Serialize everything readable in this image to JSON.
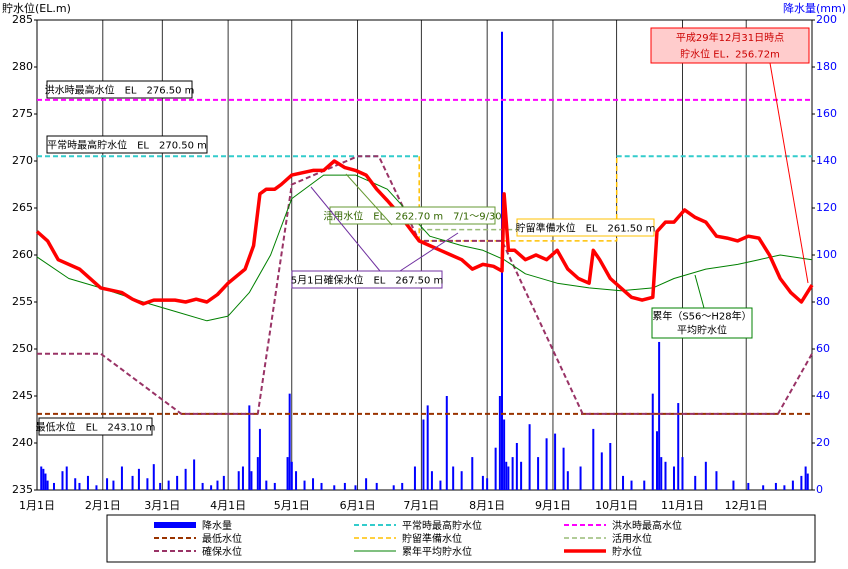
{
  "chart_data": {
    "type": "line",
    "y_label": "貯水位(EL.m)",
    "y2_label": "降水量(mm)",
    "xlim": [
      0,
      365
    ],
    "xticks": [
      {
        "value": 0,
        "label": "1月1日"
      },
      {
        "value": 31,
        "label": "2月1日"
      },
      {
        "value": 59,
        "label": "3月1日"
      },
      {
        "value": 90,
        "label": "4月1日"
      },
      {
        "value": 120,
        "label": "5月1日"
      },
      {
        "value": 151,
        "label": "6月1日"
      },
      {
        "value": 181,
        "label": "7月1日"
      },
      {
        "value": 212,
        "label": "8月1日"
      },
      {
        "value": 243,
        "label": "9月1日"
      },
      {
        "value": 273,
        "label": "10月1日"
      },
      {
        "value": 304,
        "label": "11月1日"
      },
      {
        "value": 334,
        "label": "12月1日"
      }
    ],
    "ylim": [
      235,
      285
    ],
    "yticks": [
      235,
      240,
      245,
      250,
      255,
      260,
      265,
      270,
      275,
      280,
      285
    ],
    "y2lim": [
      0,
      200
    ],
    "y2ticks": [
      0,
      20,
      40,
      60,
      80,
      100,
      120,
      140,
      160,
      180,
      200
    ],
    "grid": true,
    "series": [
      {
        "name": "降水量",
        "type": "bar",
        "axis": "y2",
        "color": "#0000ff",
        "x": [
          2,
          3,
          4,
          5,
          8,
          12,
          14,
          18,
          20,
          24,
          28,
          33,
          36,
          40,
          45,
          48,
          52,
          55,
          58,
          62,
          66,
          70,
          74,
          78,
          82,
          85,
          88,
          95,
          97,
          100,
          101,
          104,
          105,
          108,
          112,
          118,
          119,
          120,
          122,
          126,
          130,
          134,
          140,
          145,
          150,
          155,
          160,
          168,
          172,
          178,
          182,
          184,
          186,
          190,
          193,
          196,
          200,
          205,
          210,
          212,
          216,
          218,
          219,
          220,
          221,
          222,
          224,
          226,
          228,
          232,
          236,
          240,
          244,
          248,
          250,
          256,
          262,
          266,
          270,
          276,
          280,
          286,
          290,
          292,
          293,
          294,
          296,
          300,
          302,
          304,
          310,
          315,
          320,
          328,
          335,
          342,
          348,
          352,
          356,
          360,
          362,
          363
        ],
        "values": [
          10,
          9,
          7,
          4,
          3,
          8,
          10,
          5,
          3,
          6,
          2,
          5,
          4,
          10,
          6,
          9,
          5,
          11,
          3,
          4,
          6,
          9,
          13,
          3,
          2,
          4,
          6,
          8,
          10,
          36,
          8,
          14,
          26,
          4,
          3,
          14,
          41,
          12,
          8,
          4,
          5,
          3,
          2,
          3,
          2,
          5,
          3,
          2,
          3,
          10,
          30,
          36,
          8,
          4,
          40,
          10,
          8,
          14,
          6,
          5,
          18,
          40,
          195,
          30,
          12,
          10,
          14,
          20,
          12,
          28,
          14,
          22,
          24,
          18,
          8,
          10,
          26,
          16,
          20,
          6,
          4,
          4,
          41,
          25,
          63,
          14,
          12,
          10,
          37,
          14,
          6,
          12,
          8,
          4,
          3,
          2,
          3,
          2,
          4,
          6,
          10,
          7
        ]
      },
      {
        "name": "平常時最高貯水位",
        "color": "#33cccc",
        "dash": true,
        "width": 2,
        "x": [
          0,
          180,
          180,
          273,
          365
        ],
        "values": [
          270.5,
          270.5,
          null,
          270.5,
          270.5
        ]
      },
      {
        "name": "洪水時最高水位",
        "color": "#ff00ff",
        "dash": true,
        "width": 2,
        "x": [
          0,
          365
        ],
        "values": [
          276.5,
          276.5
        ]
      },
      {
        "name": "最低水位",
        "color": "#993300",
        "dash": true,
        "width": 2,
        "x": [
          0,
          365
        ],
        "values": [
          243.1,
          243.1
        ]
      },
      {
        "name": "貯留準備水位",
        "color": "#ffc000",
        "dash": true,
        "width": 1.5,
        "x": [
          180,
          180,
          273,
          273
        ],
        "values": [
          270.5,
          261.5,
          261.5,
          270.5
        ]
      },
      {
        "name": "活用水位",
        "color": "#99bb77",
        "dash": true,
        "width": 1.5,
        "x": [
          180,
          273
        ],
        "values": [
          262.7,
          262.7
        ]
      },
      {
        "name": "確保水位",
        "color": "#993366",
        "dash": true,
        "width": 2,
        "x": [
          0,
          30,
          68,
          104,
          120,
          151,
          161,
          180,
          219,
          257,
          349,
          365
        ],
        "values": [
          249.5,
          249.5,
          243.1,
          243.1,
          267.5,
          270.5,
          270.5,
          261.5,
          261.5,
          243.1,
          243.1,
          249.5
        ]
      },
      {
        "name": "累年平均貯水位",
        "color": "#008000",
        "width": 1,
        "x": [
          0,
          15,
          30,
          50,
          65,
          80,
          90,
          100,
          110,
          120,
          135,
          150,
          165,
          175,
          185,
          200,
          210,
          220,
          230,
          245,
          260,
          275,
          290,
          300,
          315,
          330,
          340,
          350,
          365
        ],
        "values": [
          259.8,
          257.5,
          256.5,
          255,
          254,
          253,
          253.5,
          256,
          260,
          266,
          268.5,
          268.5,
          267,
          264.5,
          262,
          261,
          260.5,
          259.5,
          258,
          257,
          256.5,
          256.2,
          256.5,
          257.5,
          258.5,
          259,
          259.5,
          260,
          259.5
        ]
      },
      {
        "name": "貯水位",
        "color": "#ff0000",
        "width": 3.5,
        "x": [
          0,
          5,
          10,
          20,
          30,
          40,
          45,
          50,
          55,
          65,
          70,
          75,
          80,
          85,
          90,
          98,
          102,
          105,
          108,
          112,
          115,
          120,
          130,
          135,
          140,
          145,
          150,
          155,
          160,
          165,
          170,
          175,
          180,
          185,
          190,
          195,
          200,
          205,
          210,
          215,
          219,
          220,
          222,
          225,
          230,
          235,
          240,
          245,
          250,
          255,
          260,
          262,
          265,
          270,
          275,
          280,
          285,
          290,
          292,
          296,
          300,
          305,
          310,
          315,
          320,
          325,
          330,
          335,
          340,
          345,
          350,
          355,
          360,
          365
        ],
        "values": [
          262.5,
          261.5,
          259.5,
          258.5,
          256.5,
          256,
          255.3,
          254.8,
          255.2,
          255.2,
          255,
          255.3,
          255,
          255.8,
          257,
          258.5,
          261,
          266.5,
          267,
          267,
          267.5,
          268.5,
          269,
          269,
          270,
          269.3,
          269,
          268.5,
          267,
          265.8,
          264.5,
          263,
          261.5,
          261,
          260.5,
          260,
          259.5,
          258.5,
          259,
          258.8,
          258.3,
          266.5,
          260.5,
          260.5,
          259.5,
          260,
          259.5,
          260.5,
          258.5,
          257.5,
          257,
          260.5,
          259.5,
          257.5,
          256.5,
          255.5,
          255.2,
          255.5,
          262.5,
          263.5,
          263.5,
          264.8,
          264,
          263.5,
          262,
          261.8,
          261.5,
          262,
          261.8,
          260,
          257.5,
          256,
          255,
          256.8
        ]
      }
    ],
    "annotations": [
      "洪水時最高水位　EL　276.50 m",
      "平常時最高貯水位　EL　270.50 m",
      "最低水位　EL　243.10 m",
      "活用水位　EL　262.70 m　7/1～9/30",
      "5月1日確保水位　EL　267.50 m",
      "貯留準備水位　EL　261.50 m",
      "累年（S56～H28年）",
      "平均貯水位",
      "平成29年12月31日時点",
      "貯水位 EL．256.72m"
    ]
  }
}
